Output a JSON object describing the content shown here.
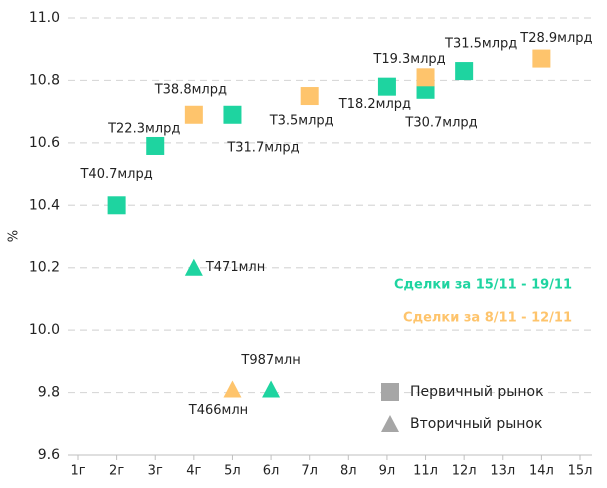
{
  "chart_data": {
    "type": "scatter",
    "y_label": "%",
    "categories": [
      "1г",
      "2г",
      "3г",
      "4г",
      "5л",
      "6л",
      "7л",
      "8л",
      "9л",
      "11л",
      "12л",
      "13л",
      "14л",
      "15л"
    ],
    "ylim": [
      9.6,
      11.0
    ],
    "yticks": [
      9.6,
      9.8,
      {
        "value": 10.0,
        "label": "10.0"
      },
      10.2,
      10.4,
      10.6,
      10.8,
      {
        "value": 11.0,
        "label": "11.0"
      }
    ],
    "grid": true,
    "series": [
      {
        "color": "#1ed4a0",
        "marker": "square",
        "x": [
          "2г",
          "3г",
          "5л",
          "9л",
          "11л",
          "12л"
        ],
        "values": [
          10.4,
          10.59,
          10.69,
          10.78,
          10.77,
          10.83
        ],
        "value_labels": [
          "Т40.7млрд",
          "Т22.3млрд",
          "Т31.7млрд",
          "Т18.2млрд",
          "Т30.7млрд",
          "Т31.5млрд"
        ]
      },
      {
        "color": "#fec46c",
        "marker": "square",
        "x": [
          "4г",
          "7л",
          "11л",
          "14л"
        ],
        "values": [
          10.69,
          10.75,
          10.81,
          10.87
        ],
        "value_labels": [
          "Т38.8млрд",
          "Т3.5млрд",
          "Т19.3млрд",
          "Т28.9млрд"
        ]
      },
      {
        "color": "#1ed4a0",
        "marker": "triangle",
        "x": [
          "4г",
          "6л"
        ],
        "values": [
          10.2,
          9.81
        ],
        "value_labels": [
          "Т471млн",
          "Т987млн"
        ]
      },
      {
        "color": "#fec46c",
        "marker": "triangle",
        "x": [
          "5л"
        ],
        "values": [
          9.81
        ],
        "value_labels": [
          "Т466млн"
        ]
      }
    ],
    "legend": {
      "periods": [
        {
          "text": "Сделки за 15/11 - 19/11",
          "color": "#1ed4a0"
        },
        {
          "text": "Сделки за 8/11 - 12/11",
          "color": "#fec46c"
        }
      ],
      "markets": [
        {
          "text": "Первичный рынок",
          "marker": "square"
        },
        {
          "text": "Вторичный рынок",
          "marker": "triangle"
        }
      ],
      "marker_color": "#a6a6a6"
    }
  }
}
